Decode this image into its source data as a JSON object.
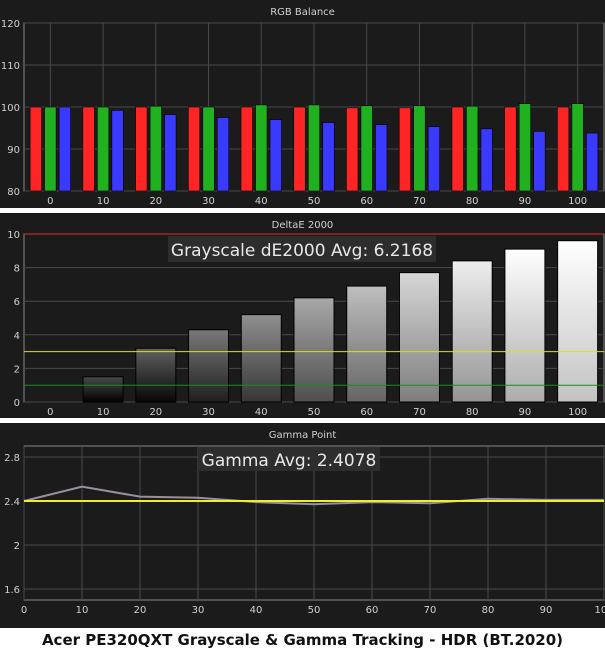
{
  "caption": "Acer PE320QXT Grayscale & Gamma Tracking - HDR (BT.2020)",
  "colors": {
    "panel_bg": "#1b1b1b",
    "plot_bg": "#1b1b1b",
    "grid": "#4a4a4a",
    "text": "#d0d0d0",
    "red": "#ff2525",
    "green": "#20b020",
    "blue": "#3a3aff",
    "threshold_red": "#e03030",
    "threshold_yellow": "#e0e000",
    "threshold_green": "#208a20",
    "gamma_measured": "#9a8fa0",
    "gamma_target": "#f0f020"
  },
  "chart_data": [
    {
      "type": "bar",
      "title": "RGB Balance",
      "categories": [
        "0",
        "10",
        "20",
        "30",
        "40",
        "50",
        "60",
        "70",
        "80",
        "90",
        "100"
      ],
      "series": [
        {
          "color": "red",
          "values": [
            100.0,
            100.0,
            100.0,
            100.0,
            100.0,
            100.0,
            99.8,
            99.8,
            100.0,
            100.0,
            100.0
          ]
        },
        {
          "color": "green",
          "values": [
            100.0,
            100.0,
            100.2,
            100.0,
            100.5,
            100.5,
            100.3,
            100.3,
            100.2,
            100.8,
            100.8
          ]
        },
        {
          "color": "blue",
          "values": [
            100.0,
            99.2,
            98.2,
            97.5,
            97.0,
            96.3,
            95.8,
            95.3,
            94.8,
            94.2,
            93.8
          ]
        }
      ],
      "ylim": [
        80,
        120
      ],
      "yticks": [
        80,
        90,
        100,
        110,
        120
      ],
      "grid": true
    },
    {
      "type": "bar",
      "title": "DeltaE 2000",
      "annotation": "Grayscale dE2000 Avg: 6.2168",
      "categories": [
        "0",
        "10",
        "20",
        "30",
        "40",
        "50",
        "60",
        "70",
        "80",
        "90",
        "100"
      ],
      "values": [
        0.0,
        1.5,
        3.2,
        4.3,
        5.2,
        6.2,
        6.9,
        7.7,
        8.4,
        9.1,
        9.6
      ],
      "thresholds": [
        {
          "value": 10,
          "color": "red"
        },
        {
          "value": 3,
          "color": "yellow"
        },
        {
          "value": 1,
          "color": "green"
        }
      ],
      "ylim": [
        0,
        10
      ],
      "yticks": [
        0,
        2,
        4,
        6,
        8,
        10
      ],
      "grid": true
    },
    {
      "type": "line",
      "title": "Gamma Point",
      "annotation": "Gamma Avg: 2.4078",
      "x": [
        0,
        10,
        20,
        30,
        40,
        50,
        60,
        70,
        80,
        90,
        100
      ],
      "series": [
        {
          "color": "measured",
          "values": [
            2.4,
            2.53,
            2.44,
            2.43,
            2.39,
            2.37,
            2.39,
            2.38,
            2.42,
            2.41,
            2.41
          ]
        },
        {
          "color": "target",
          "values": [
            2.4,
            2.4,
            2.4,
            2.4,
            2.4,
            2.4,
            2.4,
            2.4,
            2.4,
            2.4,
            2.4
          ]
        }
      ],
      "xlim": [
        0,
        100
      ],
      "xticks": [
        0,
        10,
        20,
        30,
        40,
        50,
        60,
        70,
        80,
        90,
        100
      ],
      "ylim": [
        1.5,
        2.9
      ],
      "yticks": [
        1.6,
        2,
        2.4,
        2.8
      ],
      "grid": true
    }
  ]
}
